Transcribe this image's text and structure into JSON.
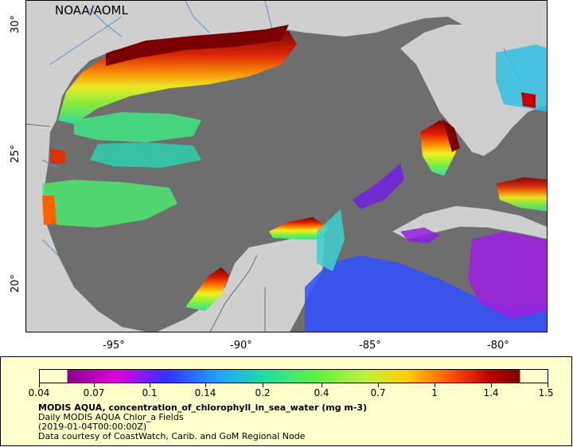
{
  "map": {
    "source_label": "NOAA/AOML",
    "lon_ticks": [
      "-95°",
      "-90°",
      "-85°",
      "-80°"
    ],
    "lat_ticks": [
      "30°",
      "25°",
      "20°"
    ],
    "colors": {
      "ocean_gray": "#6e6e6e",
      "land": "#cfcfcf",
      "river": "#5a8fc8"
    }
  },
  "legend": {
    "scale_labels": [
      "0.04",
      "0.07",
      "0.1",
      "0.14",
      "0.2",
      "0.4",
      "0.7",
      "1",
      "1.4",
      "1.5"
    ],
    "title": "MODIS AQUA, concentration_of_chlorophyll_in_sea_water (mg m-3)",
    "subtitle": "Daily MODIS AQUA Chlor_a Fields",
    "date": "(2019-01-04T00:00:00Z)",
    "credit": "Data courtesy of CoastWatch, Carib. and GoM Regional Node",
    "colormap": [
      "#8a008a",
      "#e000e0",
      "#3030ff",
      "#20a0ff",
      "#20e0a0",
      "#60f040",
      "#c0f040",
      "#ffd000",
      "#ff5000",
      "#c00000",
      "#7a0000"
    ]
  }
}
